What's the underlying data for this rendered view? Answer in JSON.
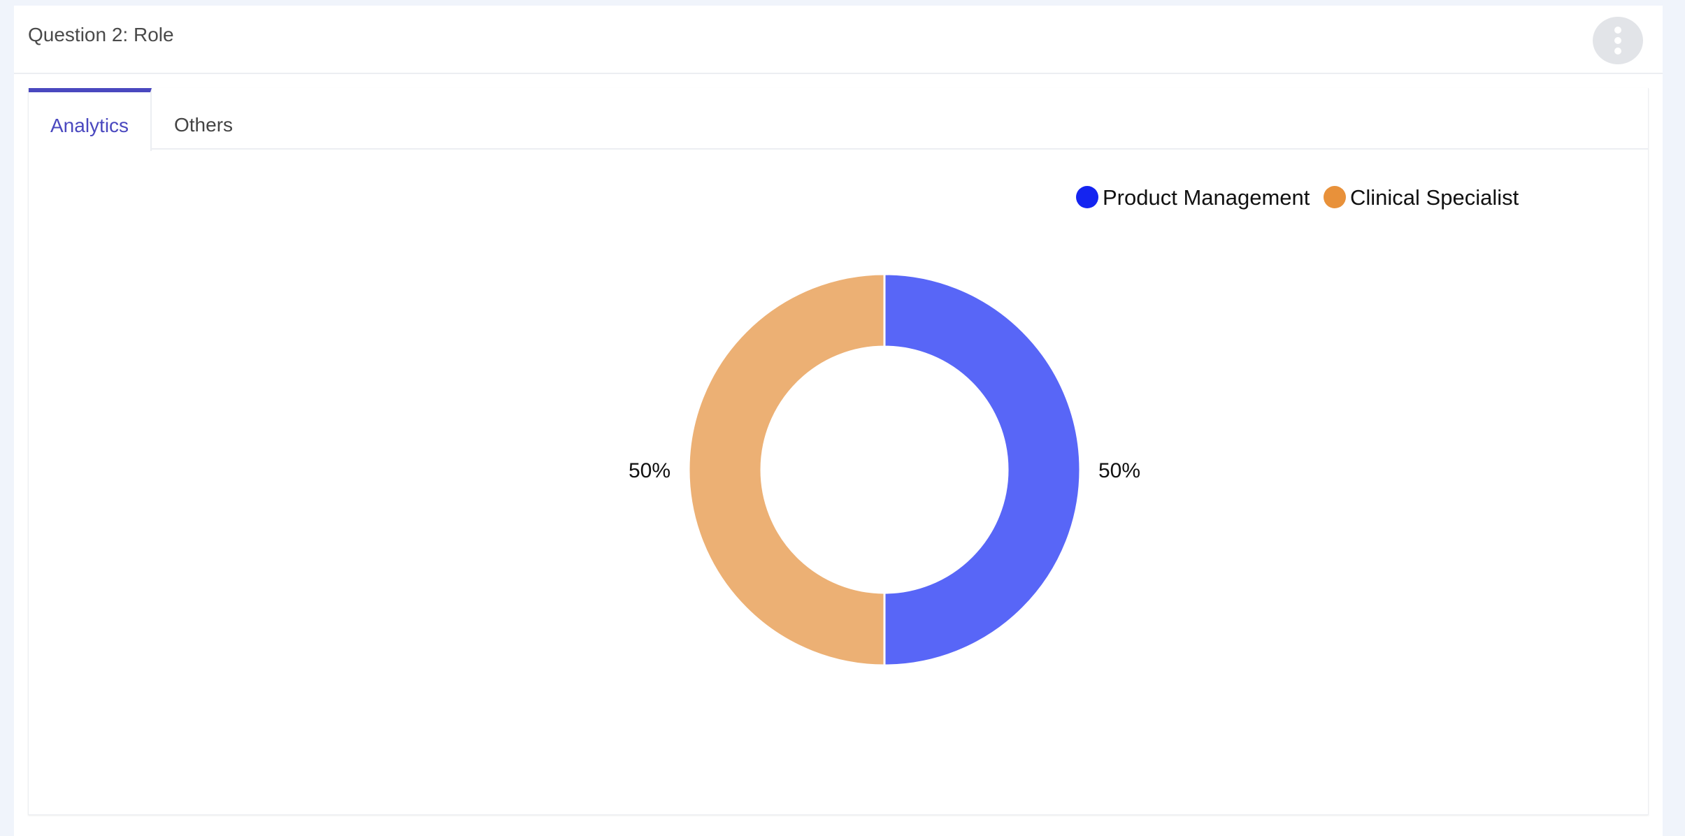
{
  "card": {
    "title": "Question 2: Role"
  },
  "menu": {
    "icon": "more-vertical-icon"
  },
  "tabs": [
    {
      "label": "Analytics",
      "active": true
    },
    {
      "label": "Others",
      "active": false
    }
  ],
  "colors": {
    "accent": "#4a48bf",
    "legend_product_management": "#1424f0",
    "legend_clinical_specialist": "#e8913a",
    "slice_product_management": "#5866f7",
    "slice_clinical_specialist": "#ecb074"
  },
  "chart_data": {
    "type": "pie",
    "donut": true,
    "legend_position": "top-right",
    "categories": [
      "Product Management",
      "Clinical Specialist"
    ],
    "values": [
      50,
      50
    ],
    "data_labels": [
      "50%",
      "50%"
    ]
  }
}
